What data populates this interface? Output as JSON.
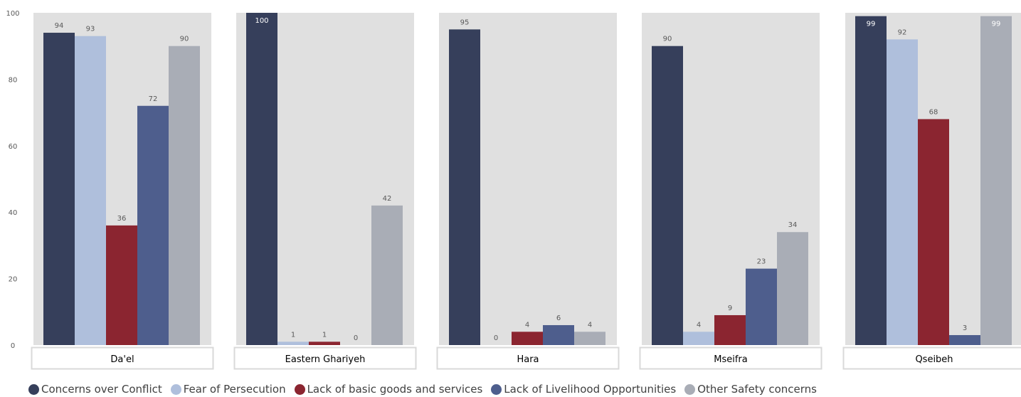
{
  "chart_data": {
    "type": "bar",
    "ylim": [
      0,
      100
    ],
    "yticks": [
      0,
      20,
      40,
      60,
      80,
      100
    ],
    "grid": false,
    "legend_position": "bottom",
    "colors": {
      "panel_background": "#e0e0e0",
      "tick_text": "#595959",
      "label_box_border": "#d9d9d9"
    },
    "series": [
      {
        "name": "Concerns over Conflict",
        "color": "#363f5b"
      },
      {
        "name": "Fear of Persecution",
        "color": "#afbfdc"
      },
      {
        "name": "Lack of basic goods and services",
        "color": "#8b2530"
      },
      {
        "name": "Lack of Livelihood Opportunities",
        "color": "#4e5e8d"
      },
      {
        "name": "Other Safety concerns",
        "color": "#a9adb6"
      }
    ],
    "panels": [
      {
        "category": "Da'el",
        "values": [
          94,
          93,
          36,
          72,
          90
        ]
      },
      {
        "category": "Eastern Ghariyeh",
        "values": [
          100,
          1,
          1,
          0,
          42
        ]
      },
      {
        "category": "Hara",
        "values": [
          95,
          0,
          4,
          6,
          4
        ]
      },
      {
        "category": "Mseifra",
        "values": [
          90,
          4,
          9,
          23,
          34
        ]
      },
      {
        "category": "Qseibeh",
        "values": [
          99,
          92,
          68,
          3,
          99
        ]
      }
    ]
  }
}
